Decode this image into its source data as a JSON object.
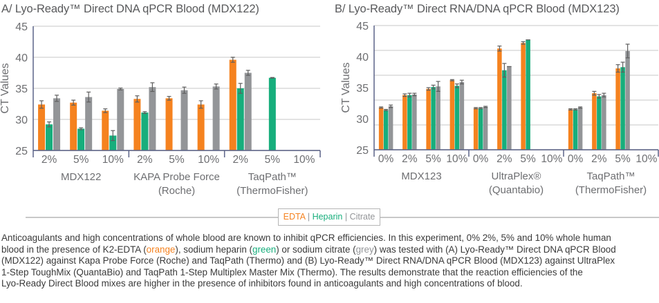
{
  "colors": {
    "EDTA": "#F5821F",
    "Heparin": "#17AE7C",
    "Citrate": "#939598",
    "axis": "#5B6388",
    "grid": "#e3e3e3"
  },
  "legend": {
    "items": [
      "EDTA",
      "Heparin",
      "Citrate"
    ],
    "separator": "|"
  },
  "chart_data": [
    {
      "type": "bar",
      "title": "A/ Lyo-Ready™ Direct DNA qPCR Blood (MDX122)",
      "ylabel": "CT Values",
      "xlabel": "",
      "ylim": [
        25,
        45
      ],
      "yticks": [
        25,
        30,
        35,
        40,
        45
      ],
      "grid_lines": [
        25,
        30,
        35,
        40,
        45
      ],
      "groups": [
        {
          "label": [
            "MDX122"
          ],
          "categories": [
            "2%",
            "5%",
            "10%"
          ]
        },
        {
          "label": [
            "KAPA Probe Force",
            "(Roche)"
          ],
          "categories": [
            "2%",
            "5%",
            "10%"
          ]
        },
        {
          "label": [
            "TaqPath™",
            "(ThermoFisher)"
          ],
          "categories": [
            "2%",
            "5%",
            "10%"
          ]
        }
      ],
      "series": [
        {
          "name": "EDTA",
          "values": [
            32.4,
            32.7,
            31.4,
            33.3,
            33.4,
            32.4,
            39.6,
            null,
            null
          ],
          "errors": [
            0.6,
            0.4,
            0.3,
            0.5,
            0.3,
            0.6,
            0.4,
            null,
            null
          ]
        },
        {
          "name": "Heparin",
          "values": [
            29.2,
            28.5,
            27.4,
            31.1,
            null,
            null,
            35.0,
            36.7,
            null
          ],
          "errors": [
            0.4,
            0.15,
            0.8,
            0.15,
            null,
            null,
            0.8,
            0.05,
            null
          ]
        },
        {
          "name": "Citrate",
          "values": [
            33.4,
            33.6,
            34.9,
            35.2,
            34.7,
            35.3,
            37.5,
            null,
            null
          ],
          "errors": [
            0.5,
            0.8,
            0.15,
            0.7,
            0.5,
            0.4,
            0.4,
            null,
            null
          ]
        }
      ]
    },
    {
      "type": "bar",
      "title": "B/ Lyo-Ready™ Direct RNA/DNA qPCR Blood (MDX123)",
      "ylabel": "CT Values",
      "xlabel": "",
      "ylim": [
        25,
        45
      ],
      "yticks": [
        25,
        30,
        35,
        40,
        45
      ],
      "grid_lines": [
        25,
        29,
        33,
        37,
        41,
        45
      ],
      "groups": [
        {
          "label": [
            "MDX123"
          ],
          "categories": [
            "0%",
            "2%",
            "5%",
            "10%"
          ]
        },
        {
          "label": [
            "UltraPlex®",
            "(Quantabio)"
          ],
          "categories": [
            "0%",
            "2%",
            "5%",
            "10%"
          ]
        },
        {
          "label": [
            "TaqPath™",
            "(ThermoFisher)"
          ],
          "categories": [
            "0%",
            "2%",
            "5%",
            "10%"
          ]
        }
      ],
      "series": [
        {
          "name": "EDTA",
          "values": [
            31.8,
            33.8,
            34.8,
            36.2,
            31.7,
            41.3,
            42.2,
            null,
            31.5,
            34.1,
            38.1,
            null
          ],
          "errors": [
            0.1,
            0.2,
            0.2,
            0.1,
            0.1,
            0.4,
            0.2,
            null,
            0.1,
            0.3,
            0.6,
            null
          ]
        },
        {
          "name": "Heparin",
          "values": [
            31.4,
            33.8,
            35.1,
            35.3,
            31.7,
            37.8,
            42.7,
            null,
            31.5,
            33.6,
            38.3,
            null
          ],
          "errors": [
            0.1,
            0.3,
            0.3,
            0.3,
            0.1,
            1.1,
            0,
            null,
            0.1,
            0.3,
            0.8,
            null
          ]
        },
        {
          "name": "Citrate",
          "values": [
            32.0,
            33.9,
            35.2,
            35.9,
            31.9,
            38.4,
            null,
            null,
            31.8,
            33.8,
            40.9,
            null
          ],
          "errors": [
            0.2,
            0.2,
            0.8,
            0.3,
            0.1,
            0,
            null,
            null,
            0.1,
            0.3,
            1.1,
            null
          ]
        }
      ]
    }
  ],
  "caption": {
    "lines": [
      [
        {
          "t": "Anticoagulants and high concentrations of whole blood are known to inhibit qPCR efficiencies. In this experiment, 0% 2%, 5% and 10% whole human"
        }
      ],
      [
        {
          "t": "blood in the presence of K2-EDTA ("
        },
        {
          "t": "orange",
          "c": "EDTA"
        },
        {
          "t": "), sodium heparin ("
        },
        {
          "t": "green",
          "c": "Heparin"
        },
        {
          "t": ") or sodium citrate ("
        },
        {
          "t": "grey",
          "c": "Citrate"
        },
        {
          "t": ") was tested with (A) Lyo-Ready™ Direct DNA qPCR Blood"
        }
      ],
      [
        {
          "t": "(MDX122) against Kapa Probe Force (Roche) and TaqPath (Thermo) and (B) Lyo-Ready™ Direct RNA/DNA qPCR Blood (MDX123) against UltraPlex"
        }
      ],
      [
        {
          "t": "1-Step ToughMix (QuantaBio) and TaqPath 1-Step Multiplex Master Mix (Thermo). The results demonstrate that the reaction efficiencies of the"
        }
      ],
      [
        {
          "t": "Lyo-Ready Direct Blood mixes are higher in the presence of inhibitors found in anticoagulants and high concentrations of blood."
        }
      ]
    ]
  }
}
